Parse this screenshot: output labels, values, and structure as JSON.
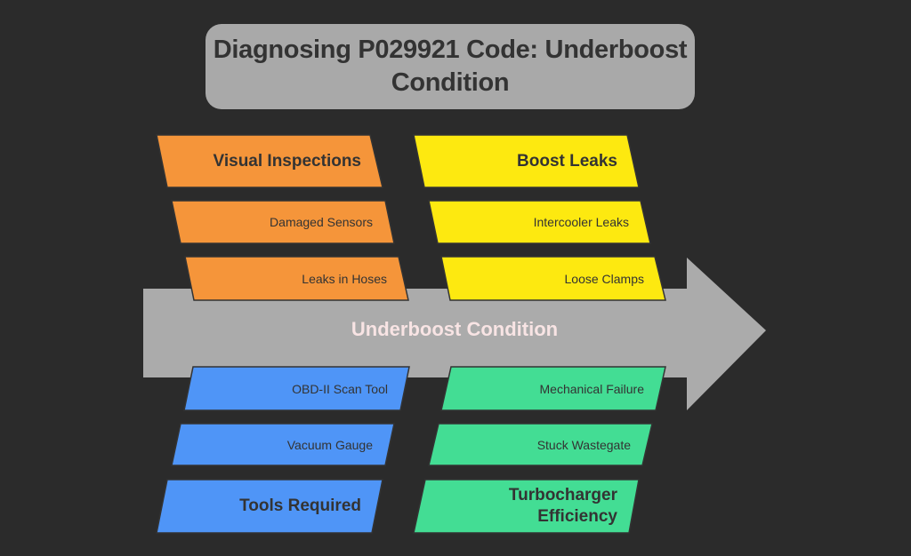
{
  "title": {
    "line1": "Diagnosing P029921 Code: Underboost",
    "line2": "Condition"
  },
  "effect": "Underboost Condition",
  "colors": {
    "background": "#2b2b2b",
    "title_box": "#a9a9a9",
    "spine": "#ababab",
    "visual": "#f5953a",
    "boost": "#fde910",
    "tools": "#4f95f7",
    "turbo": "#43dd94"
  },
  "categories": [
    {
      "id": "visual-inspections",
      "heading": [
        "Visual Inspections"
      ],
      "items": [
        "Damaged Sensors",
        "Leaks in Hoses"
      ],
      "color": "#f5953a"
    },
    {
      "id": "boost-leaks",
      "heading": [
        "Boost Leaks"
      ],
      "items": [
        "Intercooler Leaks",
        "Loose Clamps"
      ],
      "color": "#fde910"
    },
    {
      "id": "tools-required",
      "heading": [
        "Tools Required"
      ],
      "items": [
        "Vacuum Gauge",
        "OBD-II Scan Tool"
      ],
      "color": "#4f95f7"
    },
    {
      "id": "turbocharger-efficiency",
      "heading": [
        "Turbocharger",
        "Efficiency"
      ],
      "items": [
        "Stuck Wastegate",
        "Mechanical Failure"
      ],
      "color": "#43dd94"
    }
  ]
}
